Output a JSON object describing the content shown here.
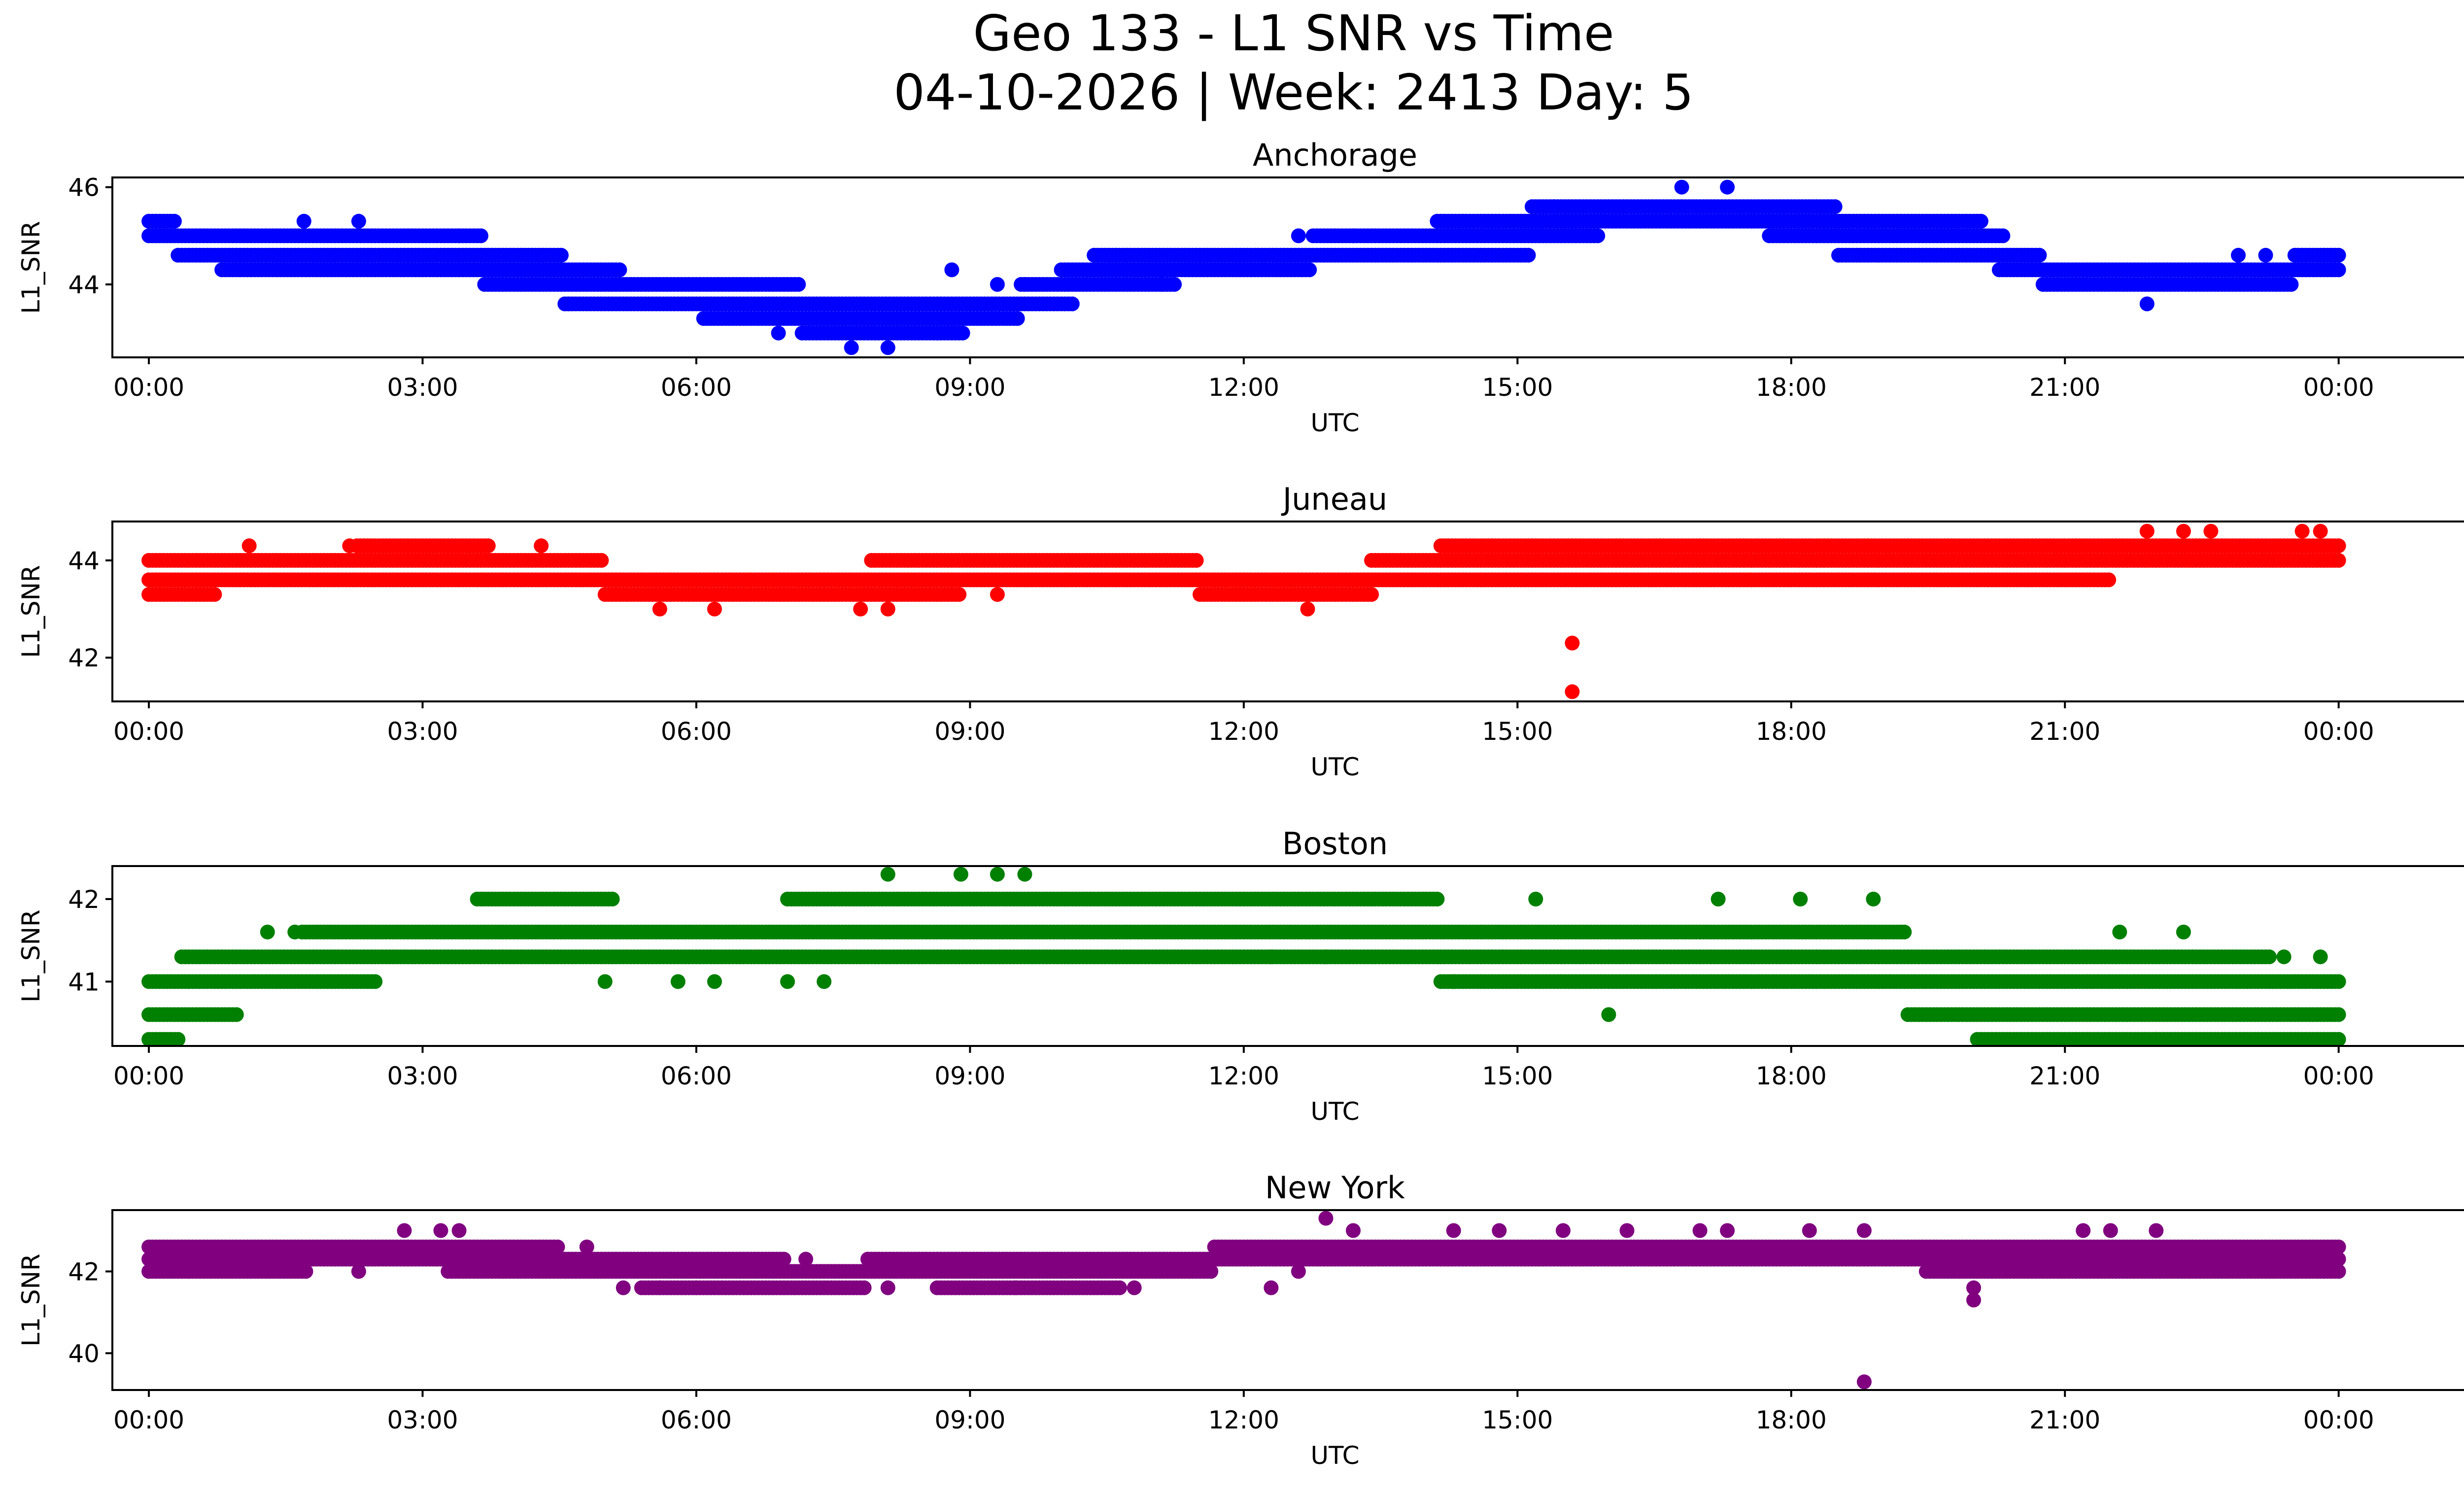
{
  "title_line1": "Geo 133 - L1 SNR vs Time",
  "title_line2": "04-10-2026 | Week: 2413 Day: 5",
  "chart_data": [
    {
      "type": "scatter",
      "title": "Anchorage",
      "xlabel": "UTC",
      "ylabel": "L1_SNR",
      "color": "#0000ff",
      "xlim": [
        -0.4,
        26.4
      ],
      "ylim": [
        42.5,
        46.2
      ],
      "yticks": [
        44,
        46
      ],
      "xtick_hours": [
        0,
        3,
        6,
        9,
        12,
        15,
        18,
        21,
        24
      ],
      "xtick_labels": [
        "00:00",
        "03:00",
        "06:00",
        "09:00",
        "12:00",
        "15:00",
        "18:00",
        "21:00",
        "00:00"
      ],
      "series": [
        {
          "name": "band",
          "x": [
            0,
            0.6,
            1.0,
            2.0,
            3.0,
            4.3,
            4.8,
            5.6,
            6.5,
            7.8,
            8.6,
            9.3,
            9.8,
            10.5,
            12.0,
            13.5,
            14.7,
            15.6,
            16.2,
            16.8,
            17.5,
            18.0,
            19.0,
            20.0,
            20.5,
            21.0,
            22.0,
            23.0,
            24.0
          ],
          "min": [
            45.0,
            44.6,
            44.3,
            44.3,
            44.3,
            44.0,
            43.6,
            43.6,
            43.3,
            43.0,
            43.0,
            43.3,
            43.6,
            44.0,
            44.3,
            44.6,
            44.6,
            45.0,
            45.3,
            45.3,
            45.3,
            45.0,
            44.6,
            44.6,
            44.3,
            44.0,
            44.0,
            44.0,
            44.3
          ],
          "max": [
            45.3,
            45.0,
            45.0,
            45.0,
            45.0,
            44.6,
            44.3,
            44.0,
            44.0,
            43.6,
            43.6,
            43.6,
            44.0,
            44.6,
            44.6,
            45.0,
            45.3,
            45.6,
            45.6,
            45.6,
            45.6,
            45.6,
            45.3,
            45.3,
            44.6,
            44.3,
            44.3,
            44.3,
            44.6
          ]
        },
        {
          "name": "outliers",
          "x": [
            1.7,
            2.3,
            3.4,
            4.6,
            6.9,
            7.7,
            8.1,
            8.8,
            9.3,
            9.6,
            11.1,
            12.6,
            13.2,
            15.4,
            16.8,
            17.3,
            21.9,
            22.9,
            23.2
          ],
          "y": [
            45.3,
            45.3,
            45.0,
            43.6,
            43.0,
            42.7,
            42.7,
            44.3,
            44.0,
            44.0,
            44.0,
            45.0,
            45.0,
            45.6,
            46.0,
            46.0,
            43.6,
            44.6,
            44.6
          ]
        }
      ]
    },
    {
      "type": "scatter",
      "title": "Juneau",
      "xlabel": "UTC",
      "ylabel": "L1_SNR",
      "color": "#ff0000",
      "xlim": [
        -0.4,
        26.4
      ],
      "ylim": [
        41.1,
        44.8
      ],
      "yticks": [
        42,
        44
      ],
      "xtick_hours": [
        0,
        3,
        6,
        9,
        12,
        15,
        18,
        21,
        24
      ],
      "xtick_labels": [
        "00:00",
        "03:00",
        "06:00",
        "09:00",
        "12:00",
        "15:00",
        "18:00",
        "21:00",
        "00:00"
      ],
      "series": [
        {
          "name": "band",
          "x": [
            0,
            1.5,
            3.0,
            4.5,
            5.5,
            6.5,
            7.5,
            8.3,
            9.5,
            11.0,
            12.0,
            13.0,
            13.8,
            14.5,
            15.5,
            16.5,
            18.0,
            19.5,
            21.0,
            22.0,
            23.0,
            24.0
          ],
          "min": [
            43.3,
            43.6,
            43.6,
            43.6,
            43.3,
            43.3,
            43.3,
            43.3,
            43.6,
            43.6,
            43.3,
            43.3,
            43.6,
            43.6,
            43.6,
            43.6,
            43.6,
            43.6,
            43.6,
            44.0,
            44.0,
            44.0
          ],
          "max": [
            44.0,
            44.0,
            44.3,
            44.0,
            43.6,
            43.6,
            43.6,
            44.0,
            44.0,
            44.0,
            43.6,
            43.6,
            44.0,
            44.3,
            44.3,
            44.3,
            44.3,
            44.3,
            44.3,
            44.3,
            44.3,
            44.3
          ]
        },
        {
          "name": "outliers",
          "x": [
            1.1,
            2.2,
            4.3,
            5.6,
            6.2,
            7.8,
            8.1,
            9.3,
            12.7,
            13.4,
            15.6,
            15.6,
            21.9,
            22.3,
            22.6,
            23.6,
            23.8
          ],
          "y": [
            44.3,
            44.3,
            44.3,
            43.0,
            43.0,
            43.0,
            43.0,
            43.3,
            43.0,
            44.0,
            42.3,
            41.3,
            44.6,
            44.6,
            44.6,
            44.6,
            44.6
          ]
        }
      ]
    },
    {
      "type": "scatter",
      "title": "Boston",
      "xlabel": "UTC",
      "ylabel": "L1_SNR",
      "color": "#008000",
      "xlim": [
        -0.4,
        26.4
      ],
      "ylim": [
        40.22,
        42.4
      ],
      "yticks": [
        41,
        42
      ],
      "xtick_hours": [
        0,
        3,
        6,
        9,
        12,
        15,
        18,
        21,
        24
      ],
      "xtick_labels": [
        "00:00",
        "03:00",
        "06:00",
        "09:00",
        "12:00",
        "15:00",
        "18:00",
        "21:00",
        "00:00"
      ],
      "series": [
        {
          "name": "band",
          "x": [
            0,
            0.7,
            1.3,
            2.0,
            3.0,
            4.2,
            6.0,
            8.0,
            10.0,
            12.0,
            13.5,
            14.8,
            16.0,
            17.5,
            19.0,
            19.5,
            20.5,
            21.5,
            22.5,
            24.0
          ],
          "min": [
            40.3,
            40.6,
            41.0,
            41.0,
            41.3,
            41.3,
            41.3,
            41.3,
            41.3,
            41.3,
            41.3,
            41.0,
            41.0,
            41.0,
            41.0,
            40.6,
            40.3,
            40.3,
            40.3,
            40.3
          ],
          "max": [
            41.0,
            41.3,
            41.3,
            41.6,
            41.6,
            42.0,
            41.6,
            42.0,
            42.0,
            42.0,
            42.0,
            41.6,
            41.6,
            41.6,
            41.6,
            41.3,
            41.3,
            41.3,
            41.3,
            41.0
          ]
        },
        {
          "name": "outliers",
          "x": [
            1.3,
            1.6,
            5.0,
            5.8,
            6.2,
            7.0,
            7.4,
            8.1,
            8.9,
            9.3,
            9.6,
            12.3,
            12.9,
            14.3,
            15.2,
            16.0,
            17.2,
            18.1,
            18.9,
            21.6,
            22.0,
            22.3,
            23.4,
            23.8
          ],
          "y": [
            41.6,
            41.6,
            41.0,
            41.0,
            41.0,
            41.0,
            41.0,
            42.3,
            42.3,
            42.3,
            42.3,
            41.3,
            41.3,
            41.0,
            42.0,
            40.6,
            42.0,
            42.0,
            42.0,
            41.6,
            40.3,
            41.6,
            41.3,
            41.3
          ]
        }
      ]
    },
    {
      "type": "scatter",
      "title": "New York",
      "xlabel": "UTC",
      "ylabel": "L1_SNR",
      "color": "#800080",
      "xlim": [
        -0.4,
        26.4
      ],
      "ylim": [
        39.1,
        43.5
      ],
      "yticks": [
        40,
        42
      ],
      "xtick_hours": [
        0,
        3,
        6,
        9,
        12,
        15,
        18,
        21,
        24
      ],
      "xtick_labels": [
        "00:00",
        "03:00",
        "06:00",
        "09:00",
        "12:00",
        "15:00",
        "18:00",
        "21:00",
        "00:00"
      ],
      "series": [
        {
          "name": "band",
          "x": [
            0,
            1.0,
            2.5,
            4.0,
            5.0,
            5.8,
            6.5,
            7.5,
            8.2,
            9.0,
            10.0,
            11.3,
            12.0,
            13.0,
            14.5,
            16.0,
            17.5,
            19.0,
            19.9,
            20.5,
            21.5,
            23.0,
            24.0
          ],
          "min": [
            42.0,
            42.0,
            42.3,
            42.0,
            42.0,
            41.6,
            41.6,
            41.6,
            42.0,
            41.6,
            41.6,
            42.0,
            42.3,
            42.3,
            42.3,
            42.3,
            42.3,
            42.3,
            42.0,
            42.0,
            42.0,
            42.0,
            42.0
          ],
          "max": [
            42.6,
            42.6,
            42.6,
            42.6,
            42.3,
            42.3,
            42.3,
            42.0,
            42.3,
            42.3,
            42.3,
            42.3,
            42.6,
            42.6,
            42.6,
            42.6,
            42.6,
            42.6,
            42.6,
            42.6,
            42.6,
            42.6,
            42.6
          ]
        },
        {
          "name": "outliers",
          "x": [
            2.3,
            2.8,
            3.2,
            3.4,
            4.8,
            5.2,
            5.6,
            6.0,
            7.2,
            8.1,
            9.5,
            10.8,
            12.3,
            12.6,
            12.9,
            13.2,
            14.3,
            14.8,
            15.5,
            16.2,
            17.0,
            17.3,
            18.2,
            18.8,
            18.8,
            20.0,
            20.0,
            21.2,
            21.5,
            22.0
          ],
          "y": [
            42.0,
            43.0,
            43.0,
            43.0,
            42.6,
            41.6,
            41.6,
            41.6,
            42.3,
            41.6,
            41.6,
            41.6,
            41.6,
            42.0,
            43.3,
            43.0,
            43.0,
            43.0,
            43.0,
            43.0,
            43.0,
            43.0,
            43.0,
            43.0,
            39.3,
            41.6,
            41.3,
            43.0,
            43.0,
            43.0
          ]
        }
      ]
    }
  ]
}
